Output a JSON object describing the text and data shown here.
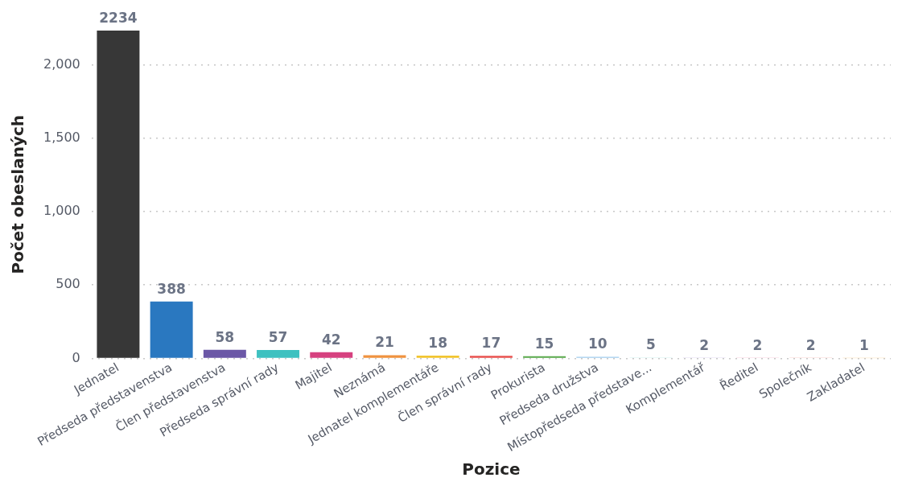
{
  "chart_data": {
    "type": "bar",
    "xlabel": "Pozice",
    "ylabel": "Počet obeslaných",
    "categories": [
      "Jednatel",
      "Předseda představenstva",
      "Člen představenstva",
      "Předseda správní rady",
      "Majitel",
      "Neznámá",
      "Jednatel komplementáře",
      "Člen správní rady",
      "Prokurista",
      "Předseda družstva",
      "Místopředseda představe...",
      "Komplementář",
      "Ředitel",
      "Společník",
      "Zakladatel"
    ],
    "values": [
      2234,
      388,
      58,
      57,
      42,
      21,
      18,
      17,
      15,
      10,
      5,
      2,
      2,
      2,
      1
    ],
    "colors": [
      "#373737",
      "#2a78c0",
      "#6b57a6",
      "#3ec1c0",
      "#d6417f",
      "#f0923f",
      "#f2c530",
      "#e9524f",
      "#58a94a",
      "#a0cbed",
      "#a9e1e0",
      "#c7b8e3",
      "#f2a7c4",
      "#f6a7a2",
      "#fbd7a0"
    ],
    "yticks": [
      {
        "value": 0,
        "label": "0"
      },
      {
        "value": 500,
        "label": "500"
      },
      {
        "value": 1000,
        "label": "1,000"
      },
      {
        "value": 1500,
        "label": "1,500"
      },
      {
        "value": 2000,
        "label": "2,000"
      }
    ],
    "ylim": [
      0,
      2234
    ],
    "grid": "y",
    "data_labels": true,
    "legend": false
  }
}
